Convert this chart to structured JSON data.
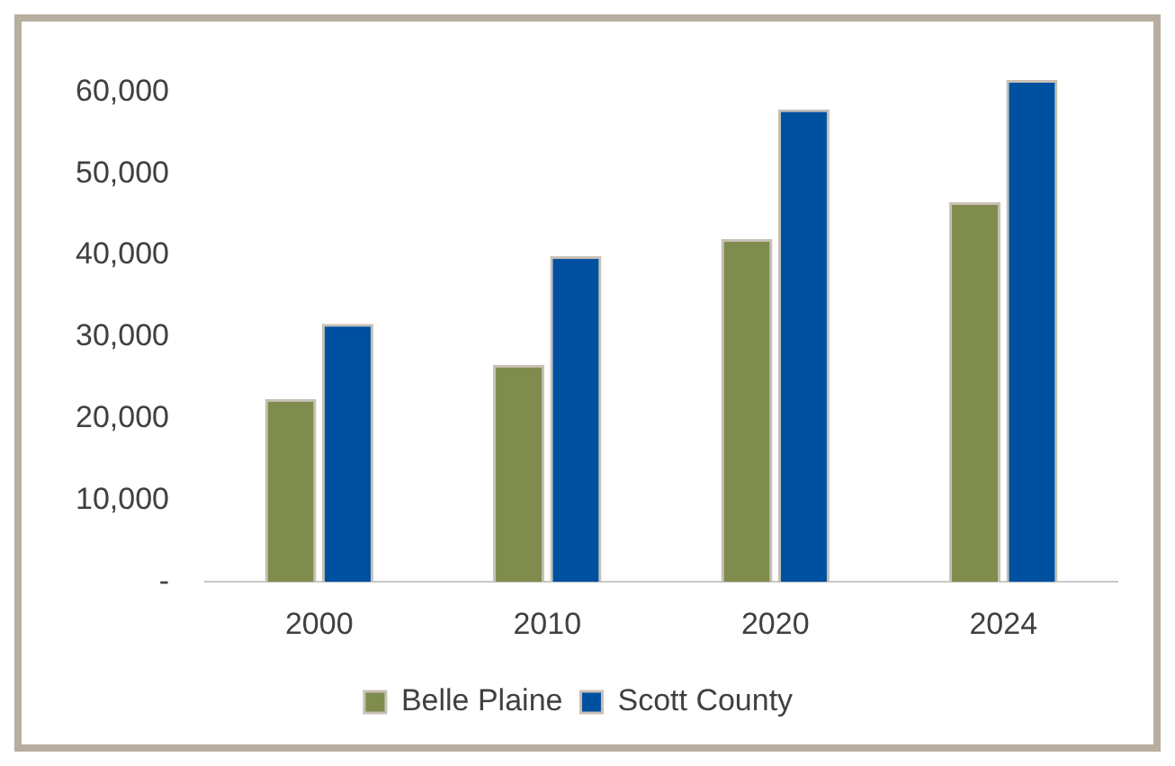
{
  "chart_data": {
    "type": "bar",
    "categories": [
      "2000",
      "2010",
      "2020",
      "2024"
    ],
    "series": [
      {
        "name": "Belle Plaine",
        "color": "#7f8c4e",
        "values": [
          22400,
          26600,
          42000,
          46500
        ]
      },
      {
        "name": "Scott County",
        "color": "#0050a0",
        "values": [
          31600,
          39900,
          57900,
          61500
        ]
      }
    ],
    "ylim": [
      0,
      62000
    ],
    "yticks": [
      {
        "value": 0,
        "label": "-"
      },
      {
        "value": 10000,
        "label": "10,000"
      },
      {
        "value": 20000,
        "label": "20,000"
      },
      {
        "value": 30000,
        "label": "30,000"
      },
      {
        "value": 40000,
        "label": "40,000"
      },
      {
        "value": 50000,
        "label": "50,000"
      },
      {
        "value": 60000,
        "label": "60,000"
      }
    ],
    "grid": false,
    "legend": "bottom"
  }
}
